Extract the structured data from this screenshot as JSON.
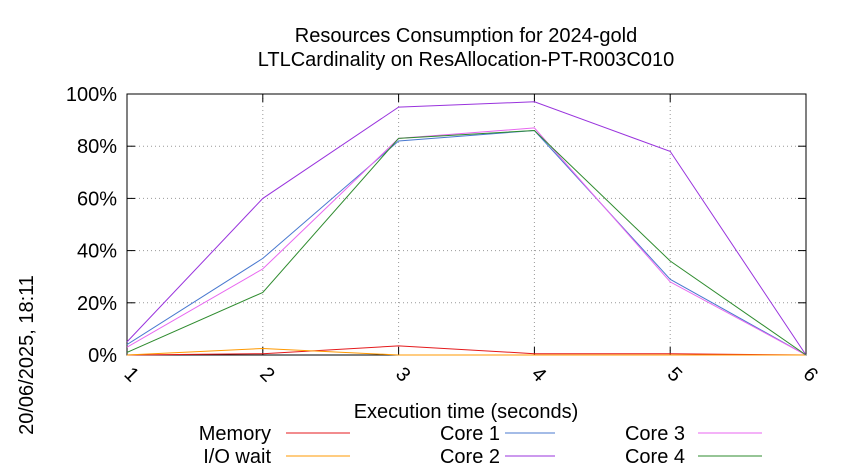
{
  "side_label": "20/06/2025, 18:11",
  "chart_data": {
    "type": "line",
    "title": "Resources Consumption for 2024-gold",
    "subtitle": "LTLCardinality on ResAllocation-PT-R003C010",
    "xlabel": "Execution time (seconds)",
    "ylabel": "",
    "xlim": [
      1,
      6
    ],
    "ylim": [
      0,
      100
    ],
    "x_ticks": [
      "1",
      "2",
      "3",
      "4",
      "5",
      "6"
    ],
    "y_ticks": [
      "0%",
      "20%",
      "40%",
      "60%",
      "80%",
      "100%"
    ],
    "grid": true,
    "legend_position": "bottom",
    "x": [
      1,
      2,
      3,
      4,
      5,
      6
    ],
    "series": [
      {
        "name": "Memory",
        "color": "#e41a1c",
        "values": [
          0,
          0.5,
          3.5,
          0.5,
          0.5,
          0
        ]
      },
      {
        "name": "I/O wait",
        "color": "#ff9900",
        "values": [
          0,
          2.5,
          0,
          0,
          0,
          0
        ]
      },
      {
        "name": "Core 1",
        "color": "#4878cf",
        "values": [
          4,
          37,
          82,
          86,
          29,
          0
        ]
      },
      {
        "name": "Core 2",
        "color": "#9933dd",
        "values": [
          5,
          60,
          95,
          97,
          78,
          0
        ]
      },
      {
        "name": "Core 3",
        "color": "#e866f0",
        "values": [
          3,
          33,
          83,
          87,
          28,
          0
        ]
      },
      {
        "name": "Core 4",
        "color": "#2e8b2e",
        "values": [
          1,
          24,
          83,
          86,
          36,
          0
        ]
      }
    ]
  }
}
